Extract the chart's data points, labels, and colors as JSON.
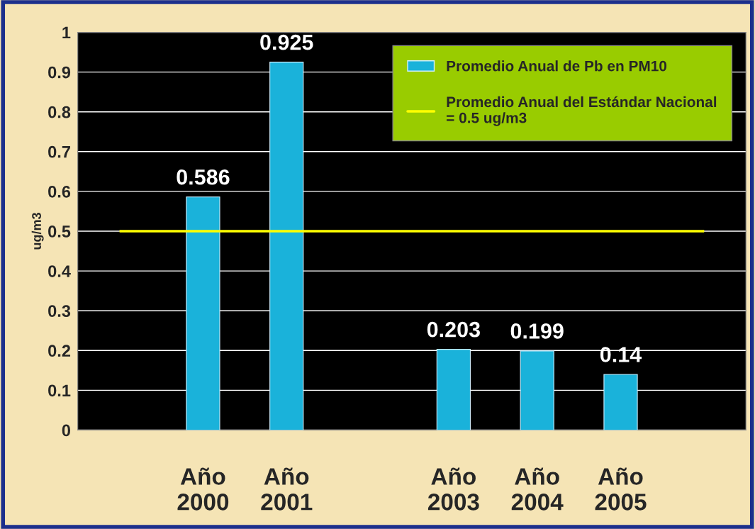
{
  "chart_data": {
    "type": "bar",
    "ylabel": "ug/m3",
    "categories": [
      null,
      "Año\n2000",
      "Año\n2001",
      null,
      "Año\n2003",
      "Año\n2004",
      "Año\n2005",
      null
    ],
    "series": [
      {
        "name": "Promedio Anual de Pb en PM10",
        "color": "#1ab2da",
        "values": [
          null,
          0.586,
          0.925,
          null,
          0.203,
          0.199,
          0.14,
          null
        ]
      }
    ],
    "ref_lines": [
      {
        "axis": "y",
        "value": 0.5,
        "label": "Promedio Anual del Estándar Nacional\n= 0.5 ug/m3",
        "color": "#ffff00"
      }
    ],
    "ylim": [
      0,
      1
    ],
    "yticks": [
      0,
      0.1,
      0.2,
      0.3,
      0.4,
      0.5,
      0.6,
      0.7,
      0.8,
      0.9,
      1
    ],
    "grid": "y",
    "legend": "top right",
    "data_labels": true
  }
}
